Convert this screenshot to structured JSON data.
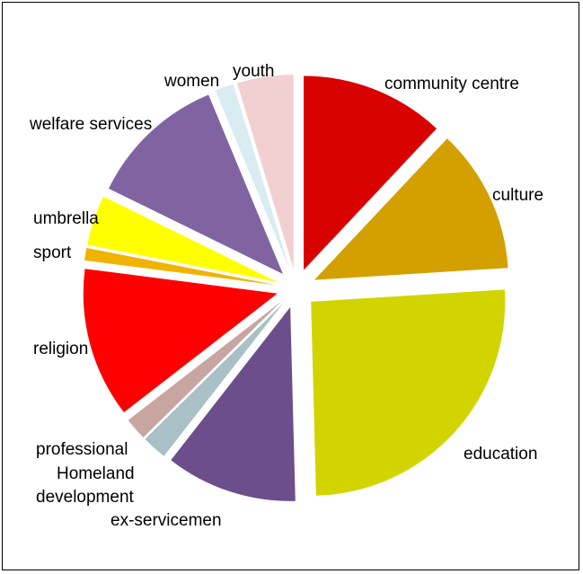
{
  "chart_data": {
    "type": "pie",
    "exploded": true,
    "legend": "none",
    "title": "",
    "slices": [
      {
        "label": "community centre",
        "value": 11.5,
        "color": "#d90000"
      },
      {
        "label": "culture",
        "value": 11.5,
        "color": "#d4a000"
      },
      {
        "label": "education",
        "value": 24.5,
        "color": "#d2d400"
      },
      {
        "label": "ex-servicemen",
        "value": 10.5,
        "color": "#6b4e8b"
      },
      {
        "label": "development",
        "value": 2.0,
        "color": "#a9c1c6"
      },
      {
        "label": "Homeland",
        "value": 0.0,
        "color": "#dcdcdc"
      },
      {
        "label": "professional",
        "value": 1.8,
        "color": "#c9a5a2"
      },
      {
        "label": "religion",
        "value": 12.0,
        "color": "#ff0000"
      },
      {
        "label": "sport",
        "value": 1.0,
        "color": "#f0b400"
      },
      {
        "label": "umbrella",
        "value": 4.0,
        "color": "#ffff00"
      },
      {
        "label": "welfare services",
        "value": 11.0,
        "color": "#8064a2"
      },
      {
        "label": "women",
        "value": 1.5,
        "color": "#d9ecf1"
      },
      {
        "label": "youth",
        "value": 4.5,
        "color": "#f2d0d2"
      }
    ]
  }
}
